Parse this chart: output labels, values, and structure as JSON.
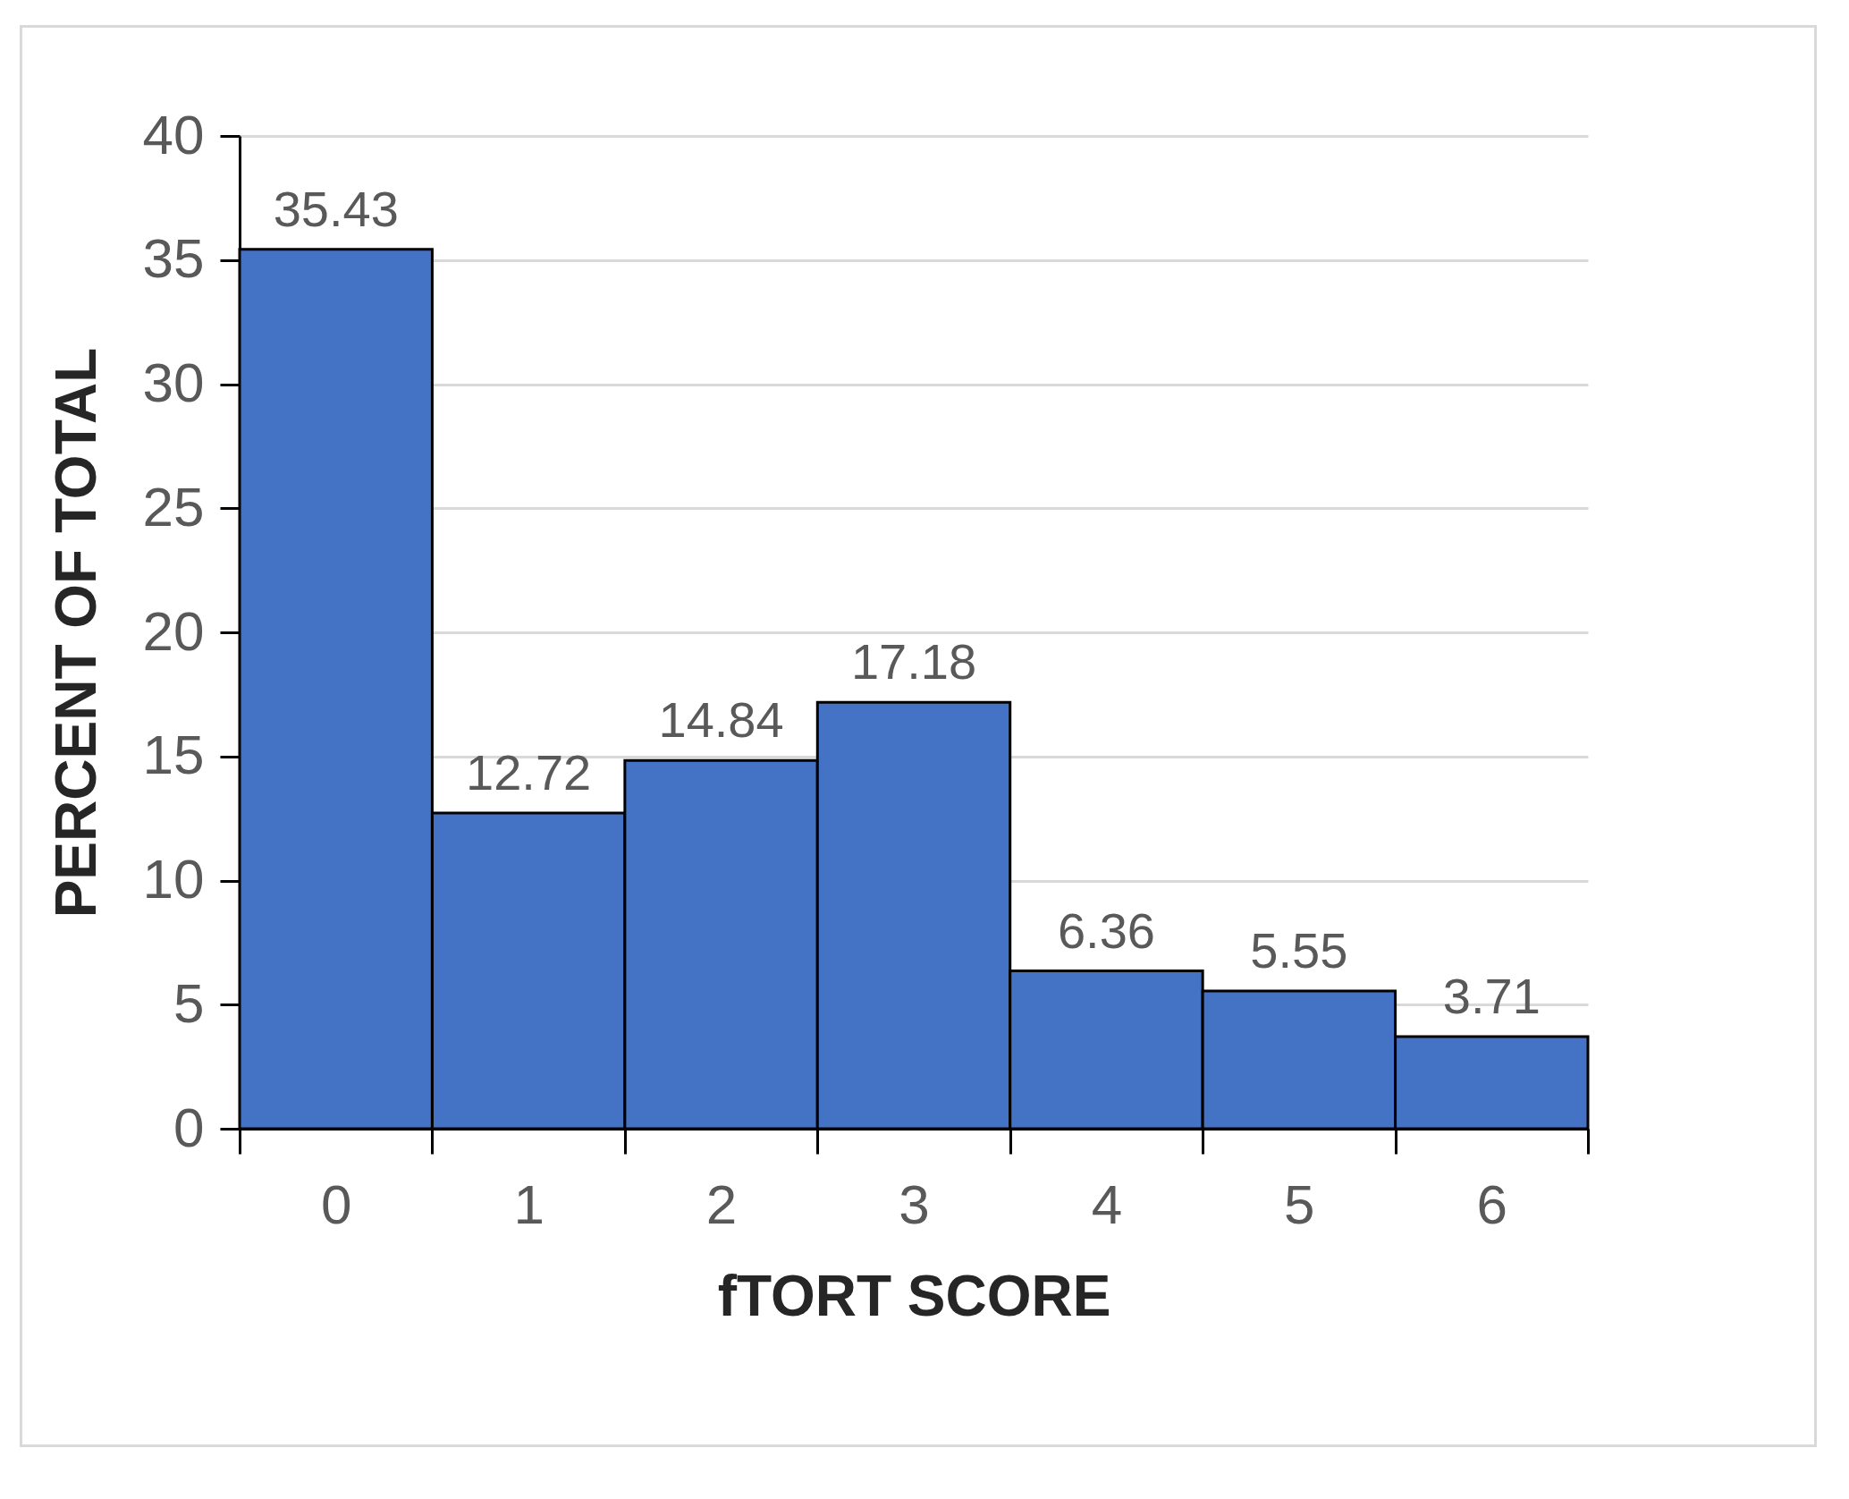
{
  "chart_data": {
    "type": "bar",
    "xlabel": "fTORT SCORE",
    "ylabel": "PERCENT OF TOTAL",
    "categories": [
      "0",
      "1",
      "2",
      "3",
      "4",
      "5",
      "6"
    ],
    "values": [
      35.43,
      12.72,
      14.84,
      17.18,
      6.36,
      5.55,
      3.71
    ],
    "color": "#4472c4",
    "ylim": [
      0,
      40
    ],
    "yticks": [
      0,
      5,
      10,
      15,
      20,
      25,
      30,
      35,
      40
    ],
    "grid": "y",
    "data_labels": true
  }
}
